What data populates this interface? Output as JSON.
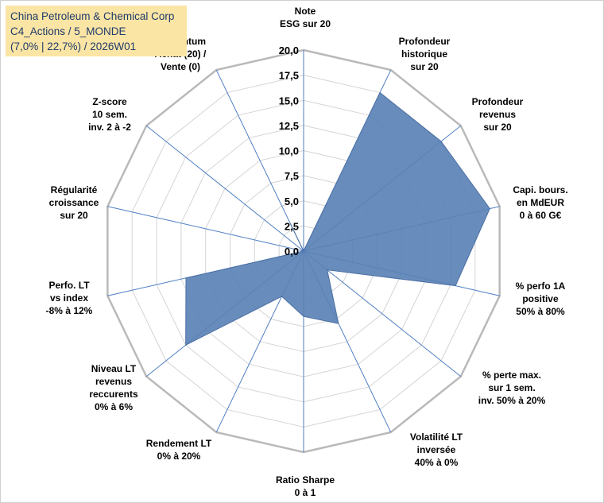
{
  "title_box": {
    "line1": "China Petroleum & Chemical Corp",
    "line2": "C4_Actions / 5_MONDE",
    "line3": "(7,0% | 22,7%) / 2026W01"
  },
  "colors": {
    "fill": "#5b82b5",
    "stroke": "#4a6fa5",
    "grid": "#d4d4d4",
    "outer_ring": "#b9b9b9",
    "spoke": "#4f7fc2",
    "title_bg": "#fbe5a4"
  },
  "chart_data": {
    "type": "radar",
    "title": "China Petroleum & Chemical Corp",
    "range": [
      0,
      20
    ],
    "ticks": [
      "0,0",
      "2,5",
      "5,0",
      "7,5",
      "10,0",
      "12,5",
      "15,0",
      "17,5",
      "20,0"
    ],
    "grid": true,
    "series": [
      {
        "name": "China Petroleum & Chemical Corp",
        "values": [
          0,
          17.5,
          17.5,
          19.0,
          15.5,
          3.0,
          8.0,
          6.5,
          5.0,
          15.0,
          12.0,
          0,
          0,
          3.0
        ]
      }
    ],
    "axes": [
      {
        "label": [
          "Note",
          "ESG sur 20"
        ]
      },
      {
        "label": [
          "Profondeur",
          "historique",
          "sur 20"
        ]
      },
      {
        "label": [
          "Profondeur",
          "revenus",
          "sur 20"
        ]
      },
      {
        "label": [
          "Capi. bours.",
          "en MdEUR",
          "0 à 60 G€"
        ]
      },
      {
        "label": [
          "% perfo 1A",
          "positive",
          "50% à 80%"
        ]
      },
      {
        "label": [
          "% perte max.",
          "sur 1 sem.",
          "inv. 50% à 20%"
        ]
      },
      {
        "label": [
          "Volatilité LT",
          "inversée",
          "40% à 0%"
        ]
      },
      {
        "label": [
          "Ratio Sharpe",
          "0 à 1"
        ]
      },
      {
        "label": [
          "Rendement LT",
          "0% à 20%"
        ]
      },
      {
        "label": [
          "Niveau LT",
          "revenus",
          "reccurents",
          "0% à 6%"
        ]
      },
      {
        "label": [
          "Perfo. LT",
          "vs index",
          "-8% à 12%"
        ]
      },
      {
        "label": [
          "Régularité",
          "croissance",
          "sur 20"
        ]
      },
      {
        "label": [
          "Z-score",
          "10 sem.",
          "inv. 2 à -2"
        ]
      },
      {
        "label": [
          "Momentum",
          "Achat (20) /",
          "Vente (0)"
        ]
      }
    ]
  }
}
